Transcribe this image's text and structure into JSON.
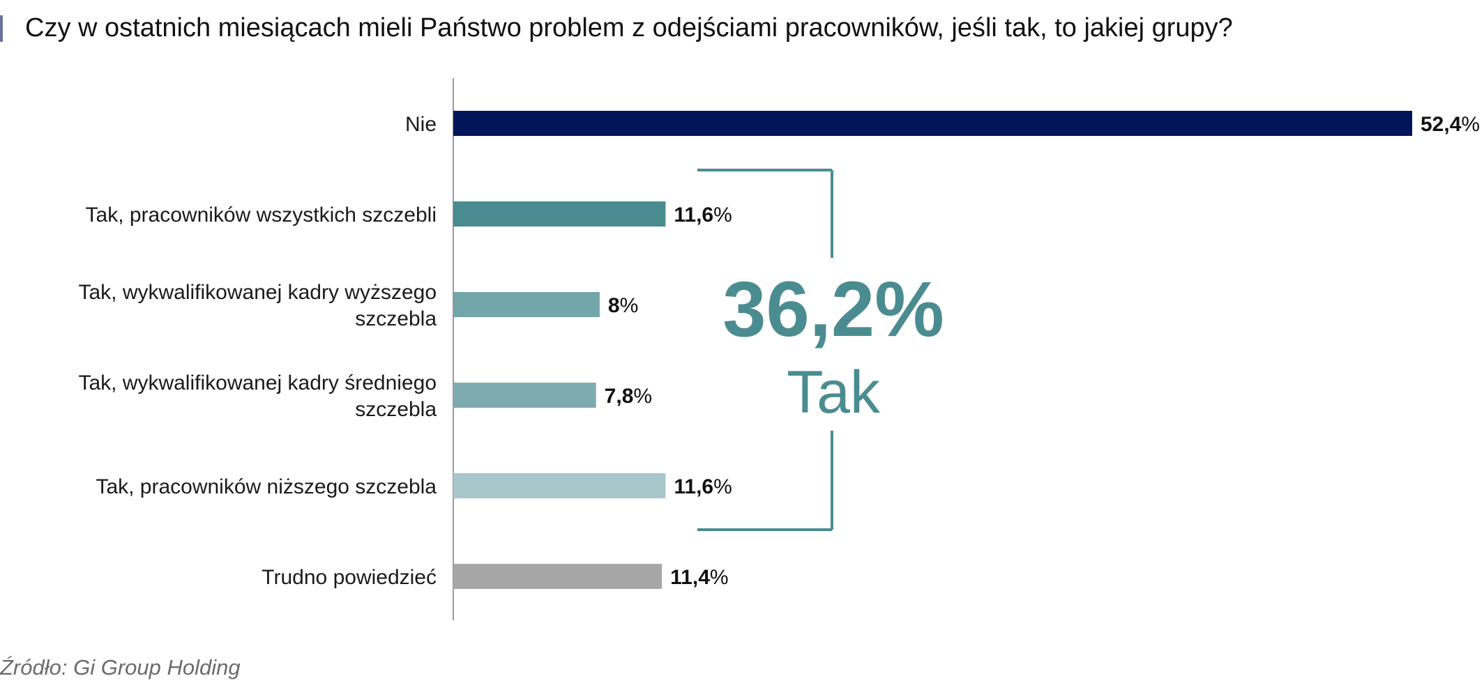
{
  "header": {
    "title": "Czy w ostatnich miesiącach mieli Państwo problem z odejściami pracowników, jeśli tak, to jakiej grupy?"
  },
  "footer": {
    "source": "Źródło: Gi Group Holding"
  },
  "colors": {
    "title_accent": "#6a7399",
    "axis": "#9a9a9a",
    "bracket": "#4a8c90",
    "bracket_text": "#4a8c90"
  },
  "chart_data": {
    "type": "bar",
    "orientation": "horizontal",
    "title": "Czy w ostatnich miesiącach mieli Państwo problem z odejściami pracowników, jeśli tak, to jakiej grupy?",
    "xlim": [
      0,
      52.4
    ],
    "grid": false,
    "legend": "none",
    "categories": [
      [
        "Nie"
      ],
      [
        "Tak, pracowników wszystkich szczebli"
      ],
      [
        "Tak, wykwalifikowanej kadry wyższego",
        "szczebla"
      ],
      [
        "Tak, wykwalifikowanej kadry średniego",
        "szczebla"
      ],
      [
        "Tak, pracowników niższego szczebla"
      ],
      [
        "Trudno powiedzieć"
      ]
    ],
    "values": [
      52.4,
      11.6,
      8,
      7.8,
      11.6,
      11.4
    ],
    "value_labels": [
      "52,4",
      "11,6",
      "8",
      "7,8",
      "11,6",
      "11,4"
    ],
    "unit": "%",
    "bar_colors": [
      "#021559",
      "#4a8c90",
      "#72a6aa",
      "#7dabae",
      "#a7c7ca",
      "#a6a6a6"
    ],
    "annotation": {
      "value": "36,2%",
      "label": "Tak",
      "spans_categories": [
        1,
        4
      ]
    }
  }
}
